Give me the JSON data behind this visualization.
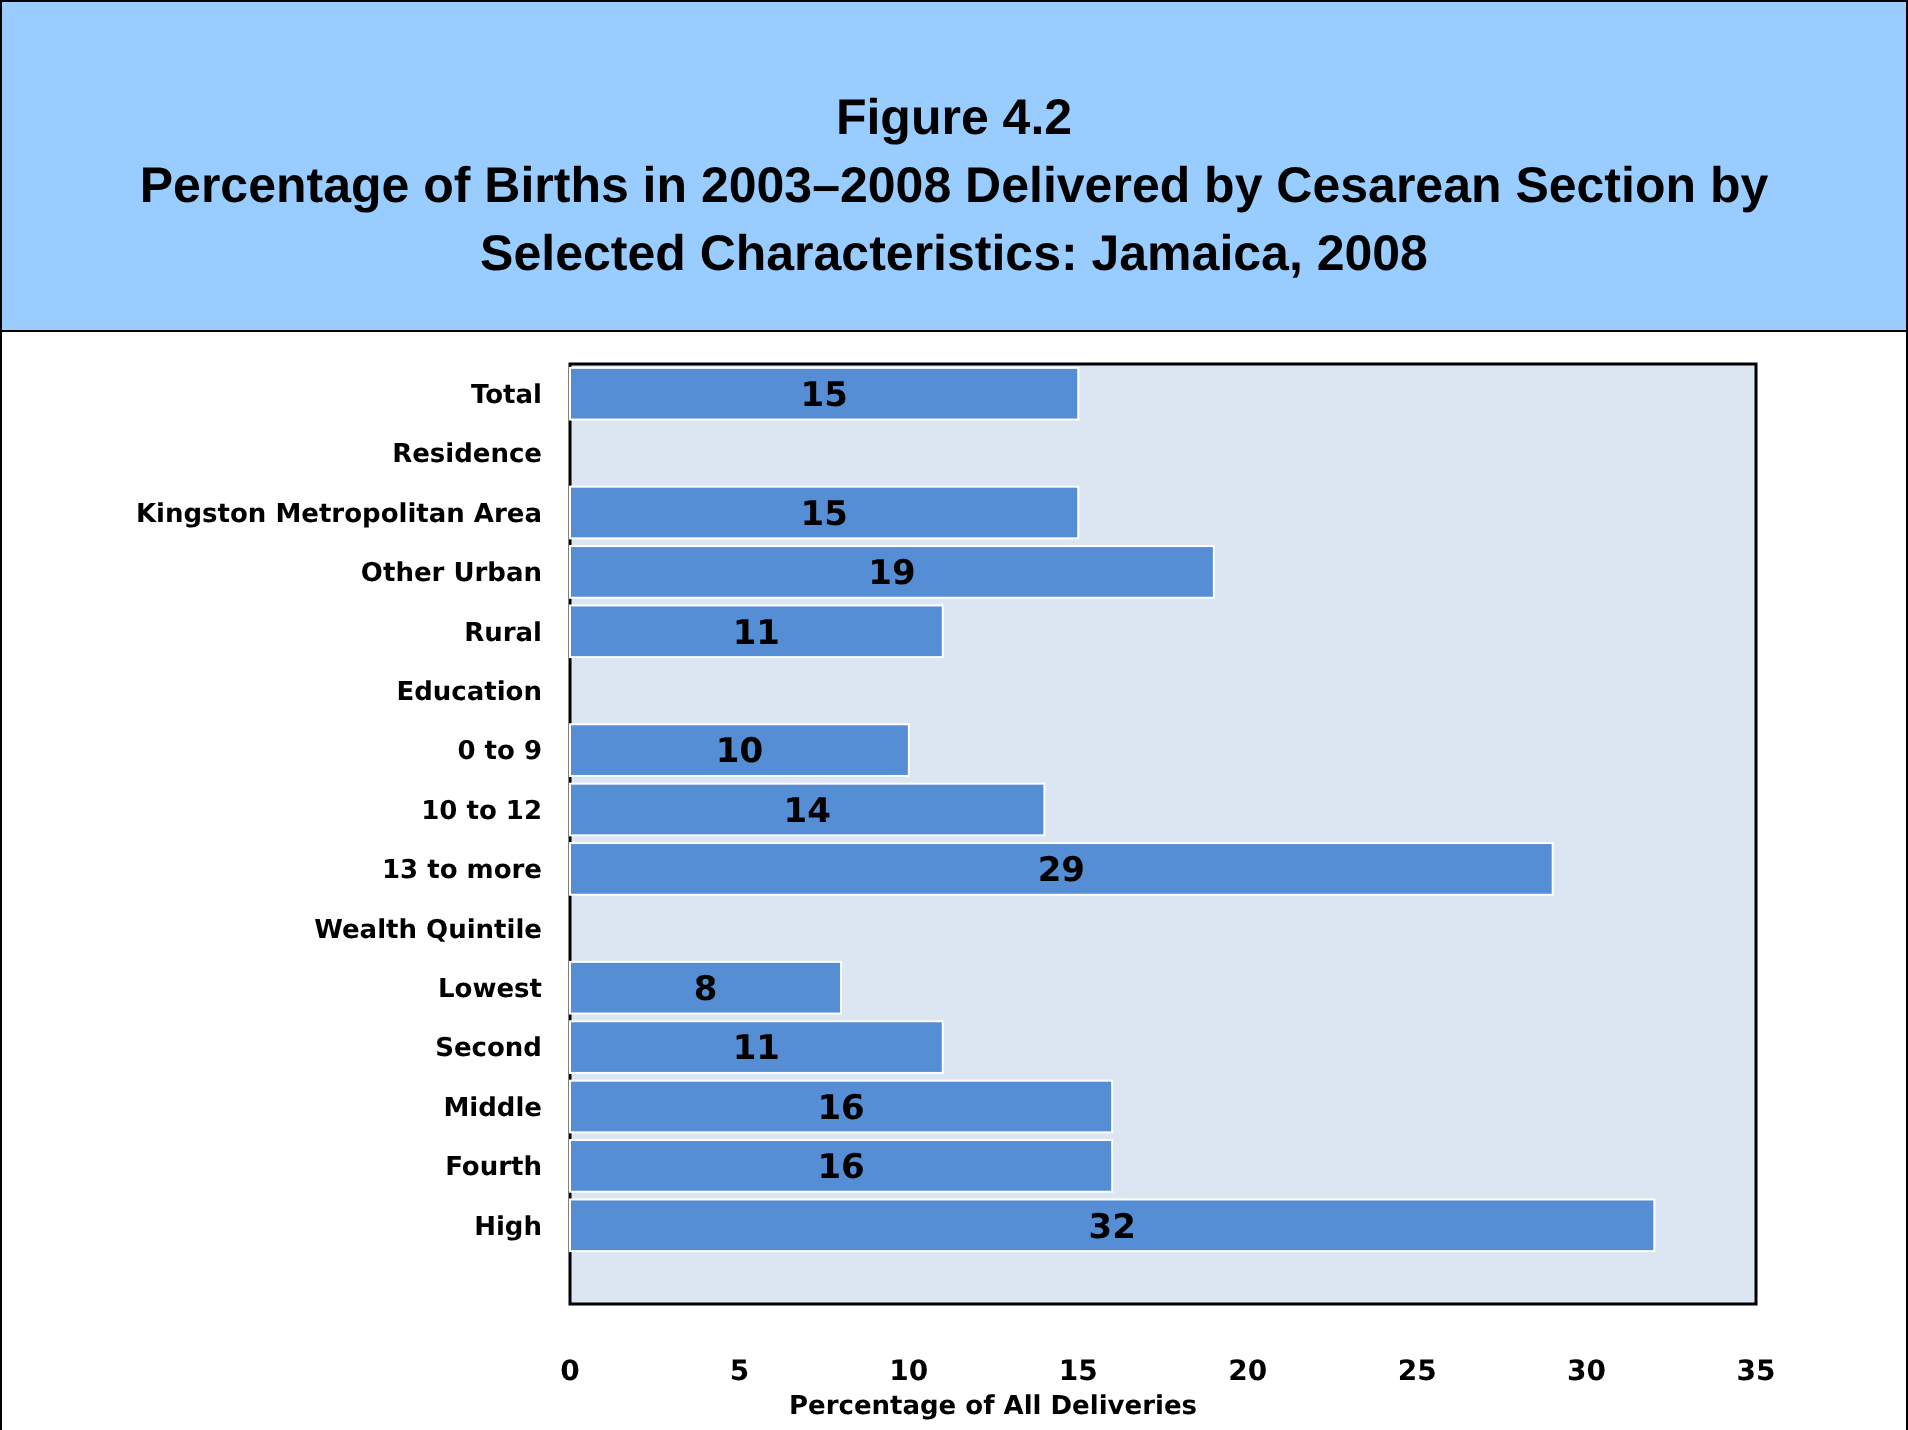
{
  "chart_data": {
    "type": "bar",
    "orientation": "horizontal",
    "title": "Figure 4.2\nPercentage of Births in 2003–2008 Delivered by Cesarean Section by\nSelected Characteristics: Jamaica, 2008",
    "xlabel": "Percentage of All Deliveries",
    "categories": [
      "Total",
      "Residence",
      "Kingston Metropolitan Area",
      "Other Urban",
      "Rural",
      "Education",
      "0 to 9",
      "10 to 12",
      "13 to more",
      "Wealth Quintile",
      "Lowest",
      "Second",
      "Middle",
      "Fourth",
      "High"
    ],
    "values": [
      15,
      null,
      15,
      19,
      11,
      null,
      10,
      14,
      29,
      null,
      8,
      11,
      16,
      16,
      32
    ],
    "color": "#558ed5",
    "xlim": [
      0,
      35
    ],
    "xticks": [
      0,
      5,
      10,
      15,
      20,
      25,
      30,
      35
    ],
    "grid": false,
    "data_labels": true
  }
}
